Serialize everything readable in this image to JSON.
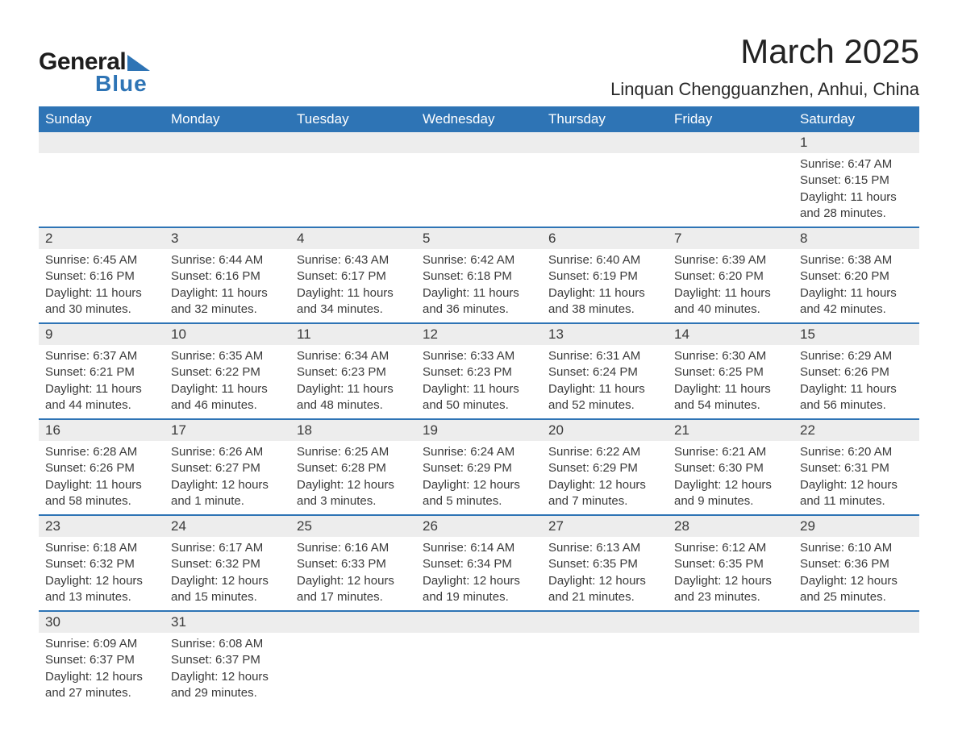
{
  "brand": {
    "name_part1": "General",
    "name_part2": "Blue",
    "text_color": "#1d1d1d",
    "accent_color": "#2e74b5"
  },
  "title": "March 2025",
  "location": "Linquan Chengguanzhen, Anhui, China",
  "calendar": {
    "header_bg": "#2e74b5",
    "header_text": "#ffffff",
    "daynum_bg": "#ededed",
    "row_border": "#2e74b5",
    "text_color": "#3a3a3a",
    "font_size_header": 17,
    "font_size_daynum": 17,
    "font_size_detail": 15,
    "days_of_week": [
      "Sunday",
      "Monday",
      "Tuesday",
      "Wednesday",
      "Thursday",
      "Friday",
      "Saturday"
    ],
    "weeks": [
      [
        null,
        null,
        null,
        null,
        null,
        null,
        {
          "n": "1",
          "sunrise": "6:47 AM",
          "sunset": "6:15 PM",
          "daylight": "11 hours and 28 minutes."
        }
      ],
      [
        {
          "n": "2",
          "sunrise": "6:45 AM",
          "sunset": "6:16 PM",
          "daylight": "11 hours and 30 minutes."
        },
        {
          "n": "3",
          "sunrise": "6:44 AM",
          "sunset": "6:16 PM",
          "daylight": "11 hours and 32 minutes."
        },
        {
          "n": "4",
          "sunrise": "6:43 AM",
          "sunset": "6:17 PM",
          "daylight": "11 hours and 34 minutes."
        },
        {
          "n": "5",
          "sunrise": "6:42 AM",
          "sunset": "6:18 PM",
          "daylight": "11 hours and 36 minutes."
        },
        {
          "n": "6",
          "sunrise": "6:40 AM",
          "sunset": "6:19 PM",
          "daylight": "11 hours and 38 minutes."
        },
        {
          "n": "7",
          "sunrise": "6:39 AM",
          "sunset": "6:20 PM",
          "daylight": "11 hours and 40 minutes."
        },
        {
          "n": "8",
          "sunrise": "6:38 AM",
          "sunset": "6:20 PM",
          "daylight": "11 hours and 42 minutes."
        }
      ],
      [
        {
          "n": "9",
          "sunrise": "6:37 AM",
          "sunset": "6:21 PM",
          "daylight": "11 hours and 44 minutes."
        },
        {
          "n": "10",
          "sunrise": "6:35 AM",
          "sunset": "6:22 PM",
          "daylight": "11 hours and 46 minutes."
        },
        {
          "n": "11",
          "sunrise": "6:34 AM",
          "sunset": "6:23 PM",
          "daylight": "11 hours and 48 minutes."
        },
        {
          "n": "12",
          "sunrise": "6:33 AM",
          "sunset": "6:23 PM",
          "daylight": "11 hours and 50 minutes."
        },
        {
          "n": "13",
          "sunrise": "6:31 AM",
          "sunset": "6:24 PM",
          "daylight": "11 hours and 52 minutes."
        },
        {
          "n": "14",
          "sunrise": "6:30 AM",
          "sunset": "6:25 PM",
          "daylight": "11 hours and 54 minutes."
        },
        {
          "n": "15",
          "sunrise": "6:29 AM",
          "sunset": "6:26 PM",
          "daylight": "11 hours and 56 minutes."
        }
      ],
      [
        {
          "n": "16",
          "sunrise": "6:28 AM",
          "sunset": "6:26 PM",
          "daylight": "11 hours and 58 minutes."
        },
        {
          "n": "17",
          "sunrise": "6:26 AM",
          "sunset": "6:27 PM",
          "daylight": "12 hours and 1 minute."
        },
        {
          "n": "18",
          "sunrise": "6:25 AM",
          "sunset": "6:28 PM",
          "daylight": "12 hours and 3 minutes."
        },
        {
          "n": "19",
          "sunrise": "6:24 AM",
          "sunset": "6:29 PM",
          "daylight": "12 hours and 5 minutes."
        },
        {
          "n": "20",
          "sunrise": "6:22 AM",
          "sunset": "6:29 PM",
          "daylight": "12 hours and 7 minutes."
        },
        {
          "n": "21",
          "sunrise": "6:21 AM",
          "sunset": "6:30 PM",
          "daylight": "12 hours and 9 minutes."
        },
        {
          "n": "22",
          "sunrise": "6:20 AM",
          "sunset": "6:31 PM",
          "daylight": "12 hours and 11 minutes."
        }
      ],
      [
        {
          "n": "23",
          "sunrise": "6:18 AM",
          "sunset": "6:32 PM",
          "daylight": "12 hours and 13 minutes."
        },
        {
          "n": "24",
          "sunrise": "6:17 AM",
          "sunset": "6:32 PM",
          "daylight": "12 hours and 15 minutes."
        },
        {
          "n": "25",
          "sunrise": "6:16 AM",
          "sunset": "6:33 PM",
          "daylight": "12 hours and 17 minutes."
        },
        {
          "n": "26",
          "sunrise": "6:14 AM",
          "sunset": "6:34 PM",
          "daylight": "12 hours and 19 minutes."
        },
        {
          "n": "27",
          "sunrise": "6:13 AM",
          "sunset": "6:35 PM",
          "daylight": "12 hours and 21 minutes."
        },
        {
          "n": "28",
          "sunrise": "6:12 AM",
          "sunset": "6:35 PM",
          "daylight": "12 hours and 23 minutes."
        },
        {
          "n": "29",
          "sunrise": "6:10 AM",
          "sunset": "6:36 PM",
          "daylight": "12 hours and 25 minutes."
        }
      ],
      [
        {
          "n": "30",
          "sunrise": "6:09 AM",
          "sunset": "6:37 PM",
          "daylight": "12 hours and 27 minutes."
        },
        {
          "n": "31",
          "sunrise": "6:08 AM",
          "sunset": "6:37 PM",
          "daylight": "12 hours and 29 minutes."
        },
        null,
        null,
        null,
        null,
        null
      ]
    ]
  },
  "labels": {
    "sunrise": "Sunrise:",
    "sunset": "Sunset:",
    "daylight": "Daylight:"
  }
}
